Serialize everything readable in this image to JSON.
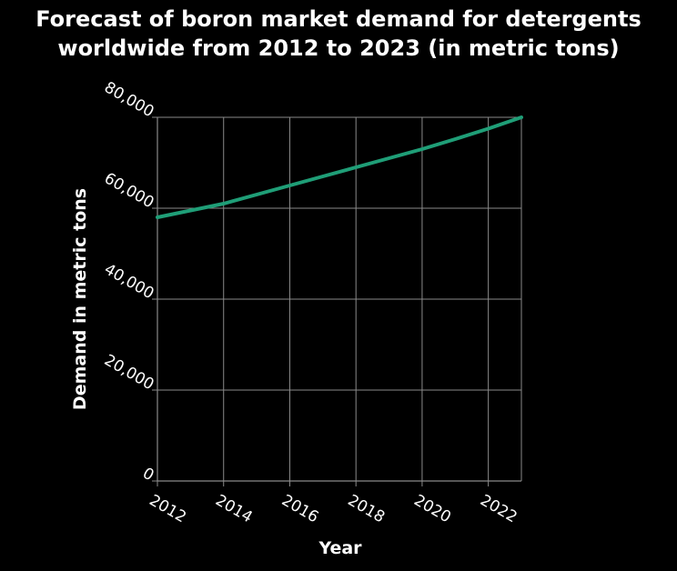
{
  "chart_data": {
    "type": "line",
    "title": "Forecast of boron market demand for detergents worldwide from 2012 to 2023 (in metric tons)",
    "title_lines": [
      "Forecast of boron market demand for detergents",
      "worldwide from 2012 to 2023 (in metric tons)"
    ],
    "xlabel": "Year",
    "ylabel": "Demand in metric tons",
    "x_ticks": [
      "2012",
      "2014",
      "2016",
      "2018",
      "2020",
      "2022"
    ],
    "y_ticks": [
      "0",
      "20,000",
      "40,000",
      "60,000",
      "80,000"
    ],
    "xlim": [
      2012,
      2023
    ],
    "ylim": [
      0,
      80000
    ],
    "grid": true,
    "legend": "none",
    "series": [
      {
        "x": [
          2012,
          2013,
          2014,
          2015,
          2016,
          2017,
          2018,
          2019,
          2020,
          2021,
          2022,
          2023
        ],
        "values": [
          58000,
          59500,
          61000,
          63000,
          65000,
          67000,
          69000,
          71000,
          73000,
          75200,
          77500,
          80000
        ]
      }
    ],
    "colors": {
      "background": "#000000",
      "line": "#1f9e77",
      "grid": "#8a8a8a",
      "text": "#ffffff"
    }
  }
}
